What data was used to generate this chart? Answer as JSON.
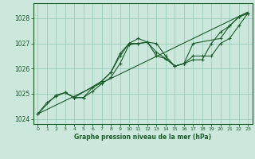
{
  "background_color": "#cce8dc",
  "grid_color": "#99ccbb",
  "line_color": "#1a5c2a",
  "xlabel": "Graphe pression niveau de la mer (hPa)",
  "xlim": [
    -0.5,
    23.5
  ],
  "ylim": [
    1023.8,
    1028.6
  ],
  "yticks": [
    1024,
    1025,
    1026,
    1027,
    1028
  ],
  "xticks": [
    0,
    1,
    2,
    3,
    4,
    5,
    6,
    7,
    8,
    9,
    10,
    11,
    12,
    13,
    14,
    15,
    16,
    17,
    18,
    19,
    20,
    21,
    22,
    23
  ],
  "series": [
    {
      "x": [
        0,
        23
      ],
      "y": [
        1024.2,
        1028.25
      ]
    },
    {
      "x": [
        0,
        1,
        2,
        3,
        4,
        5,
        6,
        7,
        8,
        9,
        10,
        11,
        12,
        13,
        14,
        15,
        16,
        17,
        18,
        19,
        20,
        21,
        22,
        23
      ],
      "y": [
        1024.2,
        1024.65,
        1024.9,
        1025.05,
        1024.85,
        1024.85,
        1025.1,
        1025.4,
        1025.65,
        1026.2,
        1026.95,
        1027.0,
        1027.05,
        1026.65,
        1026.4,
        1026.1,
        1026.2,
        1026.35,
        1026.35,
        1027.0,
        1027.45,
        1027.7,
        1028.05,
        1028.2
      ]
    },
    {
      "x": [
        0,
        2,
        3,
        4,
        5,
        6,
        7,
        8,
        9,
        10,
        11,
        12,
        13,
        14,
        15,
        16,
        17,
        18,
        19,
        20,
        21,
        22,
        23
      ],
      "y": [
        1024.2,
        1024.95,
        1025.05,
        1024.85,
        1024.85,
        1025.25,
        1025.5,
        1025.85,
        1026.5,
        1027.0,
        1027.0,
        1027.05,
        1027.0,
        1026.5,
        1026.1,
        1026.2,
        1026.5,
        1026.5,
        1026.5,
        1027.0,
        1027.2,
        1027.7,
        1028.2
      ]
    },
    {
      "x": [
        3,
        4,
        7,
        8,
        9,
        10,
        11,
        12,
        13,
        14,
        15,
        16,
        17,
        20,
        21,
        22,
        23
      ],
      "y": [
        1025.05,
        1024.85,
        1025.5,
        1025.85,
        1026.6,
        1027.0,
        1027.2,
        1027.05,
        1026.5,
        1026.4,
        1026.1,
        1026.2,
        1027.0,
        1027.2,
        1027.7,
        1028.05,
        1028.2
      ]
    }
  ]
}
